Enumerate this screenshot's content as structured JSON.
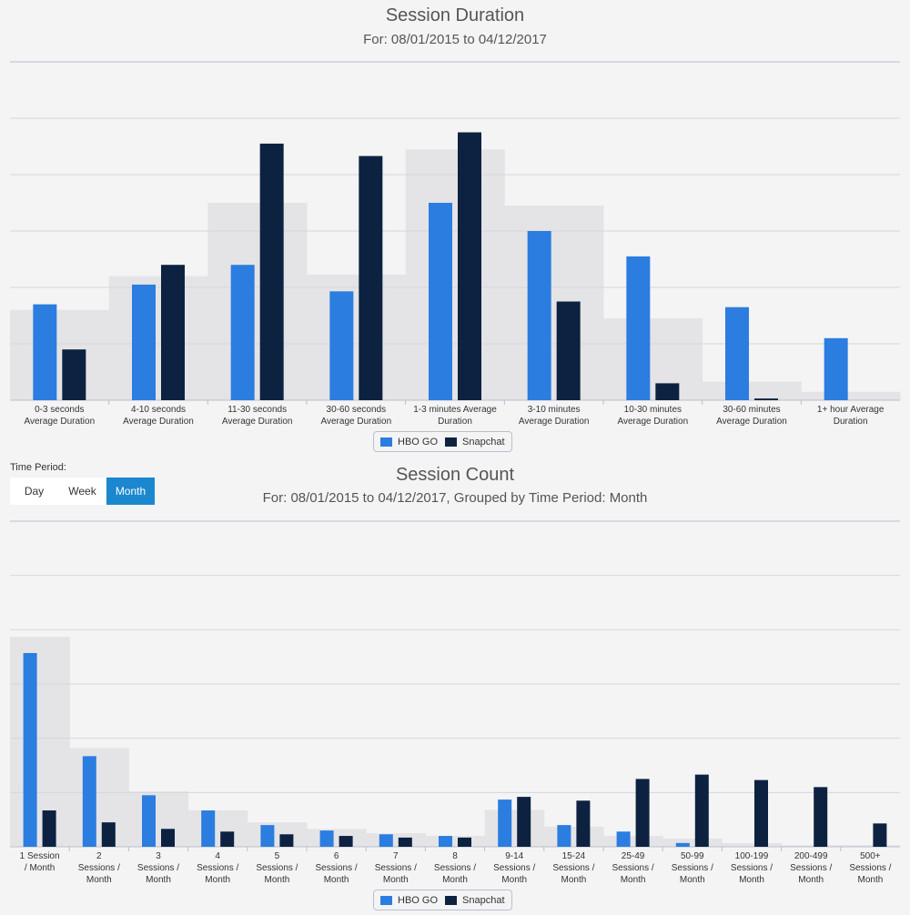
{
  "colors": {
    "hbo": "#2b7de0",
    "snapchat": "#0d2240",
    "aggregate": "#e4e4e6",
    "grid": "#d4d6dc",
    "axis": "#b8bfcc"
  },
  "legend": {
    "hbo": "HBO GO",
    "snapchat": "Snapchat"
  },
  "time_period": {
    "label": "Time Period:",
    "options": [
      "Day",
      "Week",
      "Month"
    ],
    "selected": "Month"
  },
  "chart_data": [
    {
      "type": "bar",
      "title": "Session Duration",
      "subtitle": "For: 08/01/2015 to 04/12/2017",
      "categories": [
        [
          "0-3 seconds",
          "Average Duration"
        ],
        [
          "4-10 seconds",
          "Average Duration"
        ],
        [
          "11-30 seconds",
          "Average Duration"
        ],
        [
          "30-60 seconds",
          "Average Duration"
        ],
        [
          "1-3 minutes Average",
          "Duration"
        ],
        [
          "3-10 minutes",
          "Average Duration"
        ],
        [
          "10-30 minutes",
          "Average Duration"
        ],
        [
          "30-60 minutes",
          "Average Duration"
        ],
        [
          "1+ hour Average",
          "Duration"
        ]
      ],
      "series": [
        {
          "name": "HBO GO",
          "values": [
            17,
            20.5,
            24,
            19.3,
            35,
            30,
            25.5,
            16.5,
            11
          ]
        },
        {
          "name": "Snapchat",
          "values": [
            9,
            24,
            45.5,
            43.3,
            47.5,
            17.5,
            3,
            0.3,
            0
          ]
        }
      ],
      "background_aggregate": [
        16,
        22,
        35,
        22.3,
        44.5,
        34.5,
        14.5,
        3.3,
        1.5
      ],
      "ylim": [
        0,
        60
      ],
      "gridlines": 6,
      "grid": true,
      "legend_position": "bottom-center"
    },
    {
      "type": "bar",
      "title": "Session Count",
      "subtitle": "For: 08/01/2015 to 04/12/2017, Grouped by Time Period: Month",
      "categories": [
        [
          "1 Session",
          "/ Month"
        ],
        [
          "2",
          "Sessions /",
          "Month"
        ],
        [
          "3",
          "Sessions /",
          "Month"
        ],
        [
          "4",
          "Sessions /",
          "Month"
        ],
        [
          "5",
          "Sessions /",
          "Month"
        ],
        [
          "6",
          "Sessions /",
          "Month"
        ],
        [
          "7",
          "Sessions /",
          "Month"
        ],
        [
          "8",
          "Sessions /",
          "Month"
        ],
        [
          "9-14",
          "Sessions /",
          "Month"
        ],
        [
          "15-24",
          "Sessions /",
          "Month"
        ],
        [
          "25-49",
          "Sessions /",
          "Month"
        ],
        [
          "50-99",
          "Sessions /",
          "Month"
        ],
        [
          "100-199",
          "Sessions /",
          "Month"
        ],
        [
          "200-499",
          "Sessions /",
          "Month"
        ],
        [
          "500+",
          "Sessions /",
          "Month"
        ]
      ],
      "series": [
        {
          "name": "HBO GO",
          "values": [
            35.7,
            16.7,
            9.5,
            6.7,
            4,
            3,
            2.3,
            2,
            8.7,
            4,
            2.8,
            0.7,
            0,
            0,
            0
          ]
        },
        {
          "name": "Snapchat",
          "values": [
            6.7,
            4.5,
            3.3,
            2.8,
            2.3,
            2,
            1.7,
            1.7,
            9.2,
            8.5,
            12.5,
            13.3,
            12.3,
            11,
            4.3
          ]
        }
      ],
      "background_aggregate": [
        38.7,
        18.2,
        10.2,
        6.7,
        4.5,
        3.3,
        2.5,
        2,
        6.8,
        3.7,
        2,
        1.5,
        0.7,
        0.3,
        0.3
      ],
      "ylim": [
        0,
        60
      ],
      "gridlines": 6,
      "grid": true,
      "legend_position": "bottom-center"
    }
  ]
}
